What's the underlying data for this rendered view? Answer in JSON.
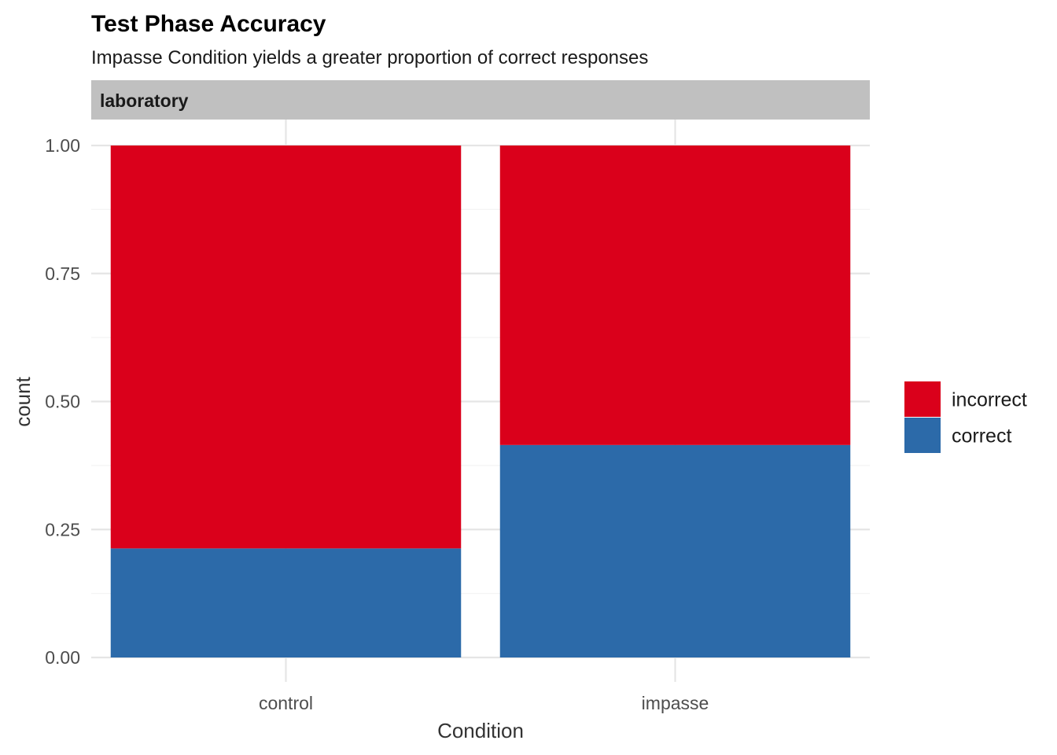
{
  "chart_data": {
    "type": "bar",
    "stacked": true,
    "title": "Test Phase Accuracy",
    "subtitle": "Impasse Condition yields a greater proportion of correct responses",
    "facet_label": "laboratory",
    "xlabel": "Condition",
    "ylabel": "count",
    "categories": [
      "control",
      "impasse"
    ],
    "ylim": [
      0,
      1
    ],
    "yticks": [
      "0.00",
      "0.25",
      "0.50",
      "0.75",
      "1.00"
    ],
    "ytick_values": [
      0,
      0.25,
      0.5,
      0.75,
      1.0
    ],
    "series": [
      {
        "name": "correct",
        "color": "#2C6AA9",
        "values": [
          0.213,
          0.415
        ]
      },
      {
        "name": "incorrect",
        "color": "#DA001B",
        "values": [
          0.787,
          0.585
        ]
      }
    ],
    "legend_order": [
      "incorrect",
      "correct"
    ],
    "legend_position": "right",
    "grid": true
  }
}
